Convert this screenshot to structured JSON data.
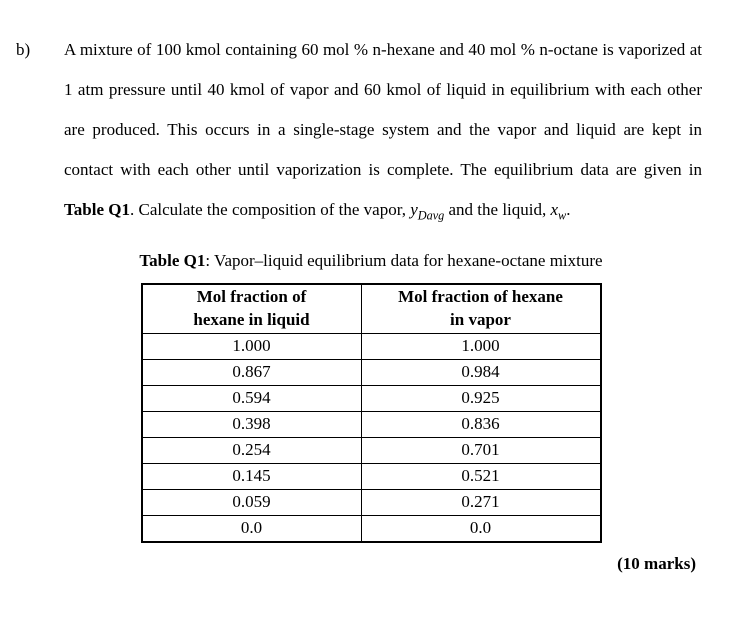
{
  "question": {
    "label": "b)",
    "text_parts": {
      "p1": "A mixture of 100 kmol containing 60 mol % n-hexane and 40 mol % n-octane is vaporized at 1 atm pressure until 40 kmol of vapor and 60 kmol of liquid in equilibrium with each other are produced. This occurs in a single-stage system and the vapor and liquid are kept in contact with each other until vaporization is complete. The equilibrium data are given in ",
      "bold1": "Table Q1",
      "p2": ". Calculate the composition of the vapor, ",
      "var_y": "y",
      "sub_y": "Davg",
      "p3": " and the liquid, ",
      "var_x": "x",
      "sub_x": "w",
      "p4": "."
    }
  },
  "table": {
    "title_bold": "Table Q1",
    "title_rest": ": Vapor–liquid equilibrium data for hexane-octane mixture",
    "header_liquid_l1": "Mol fraction of",
    "header_liquid_l2": "hexane in liquid",
    "header_vapor_l1": "Mol fraction of hexane",
    "header_vapor_l2": "in vapor",
    "rows": [
      {
        "liquid": "1.000",
        "vapor": "1.000"
      },
      {
        "liquid": "0.867",
        "vapor": "0.984"
      },
      {
        "liquid": "0.594",
        "vapor": "0.925"
      },
      {
        "liquid": "0.398",
        "vapor": "0.836"
      },
      {
        "liquid": "0.254",
        "vapor": "0.701"
      },
      {
        "liquid": "0.145",
        "vapor": "0.521"
      },
      {
        "liquid": "0.059",
        "vapor": "0.271"
      },
      {
        "liquid": "0.0",
        "vapor": "0.0"
      }
    ]
  },
  "marks": "(10 marks)"
}
